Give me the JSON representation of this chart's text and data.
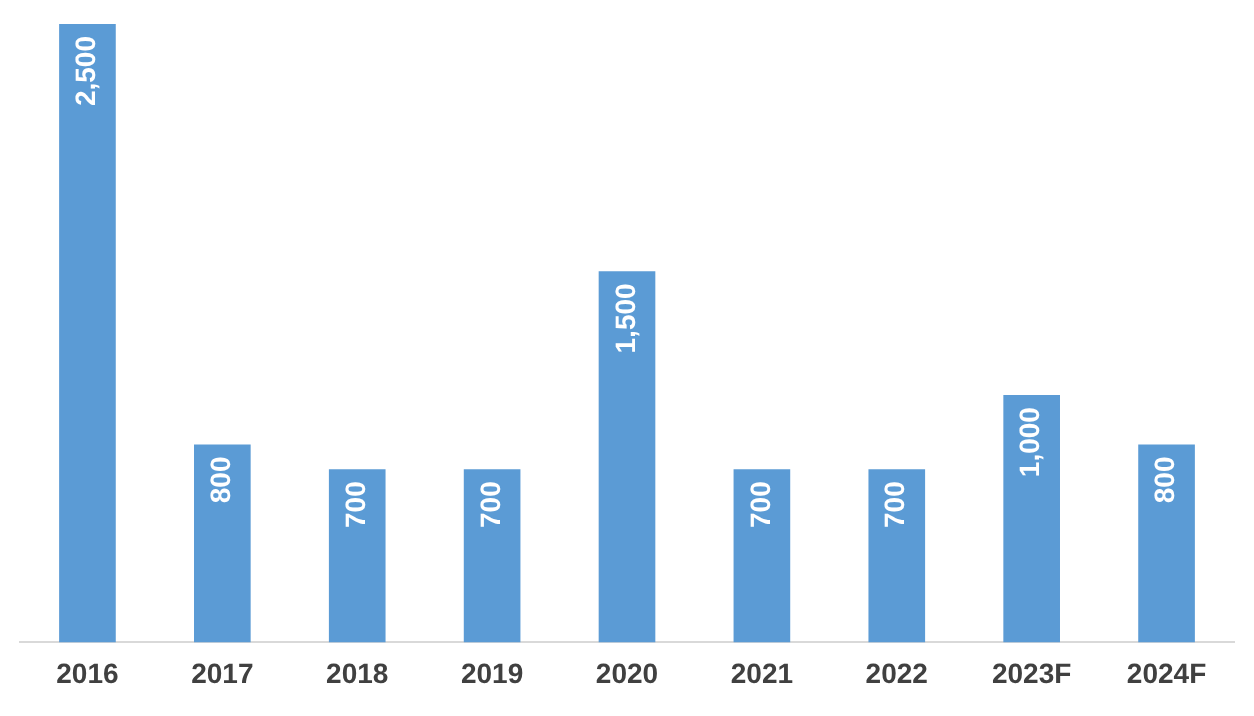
{
  "chart_data": {
    "type": "bar",
    "categories": [
      "2016",
      "2017",
      "2018",
      "2019",
      "2020",
      "2021",
      "2022",
      "2023F",
      "2024F"
    ],
    "values": [
      2500,
      800,
      700,
      700,
      1500,
      700,
      700,
      1000,
      800
    ],
    "value_labels": [
      "2,500",
      "800",
      "700",
      "700",
      "1,500",
      "700",
      "700",
      "1,000",
      "800"
    ],
    "color": "#5b9bd5",
    "grid": false,
    "legend": false
  }
}
